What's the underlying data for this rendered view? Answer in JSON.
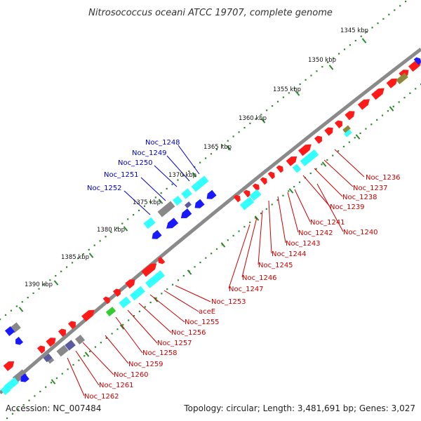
{
  "title": "Nitrosococcus oceani ATCC 19707, complete genome",
  "footer": {
    "accession": "Accession: NC_007484",
    "summary": "Topology: circular; Length: 3,481,691 bp; Genes: 3,027"
  },
  "colors": {
    "backbone": "#888888",
    "tick_dots": "#2e8b2e",
    "red_feature": "#ff1a1a",
    "cyan_feature": "#33ffff",
    "blue_feature": "#1a1aff",
    "navy_feature": "#5a5aa0",
    "grey_feature": "#888888",
    "green_feature": "#33cc33",
    "olive_feature": "#8a8a3a",
    "label_blue": "#0000cc",
    "label_red": "#cc0000"
  },
  "kbp_ticks": [
    "1345 kbp",
    "1350 kbp",
    "1355 kbp",
    "1360 kbp",
    "1365 kbp",
    "1370 kbp",
    "1375 kbp",
    "1380 kbp",
    "1385 kbp",
    "1390 kbp"
  ],
  "blue_labels": [
    "Noc_1248",
    "Noc_1249",
    "Noc_1250",
    "Noc_1251",
    "Noc_1252"
  ],
  "red_labels_right": [
    "Noc_1236",
    "Noc_1237",
    "Noc_1238",
    "Noc_1239",
    "Noc_1240",
    "Noc_1241",
    "Noc_1242",
    "Noc_1243",
    "Noc_1244",
    "Noc_1245",
    "Noc_1246",
    "Noc_1247"
  ],
  "red_labels_lower": [
    "Noc_1253",
    "aceE",
    "Noc_1255",
    "Noc_1256",
    "Noc_1257",
    "Noc_1258",
    "Noc_1259",
    "Noc_1260",
    "Noc_1261",
    "Noc_1262"
  ]
}
